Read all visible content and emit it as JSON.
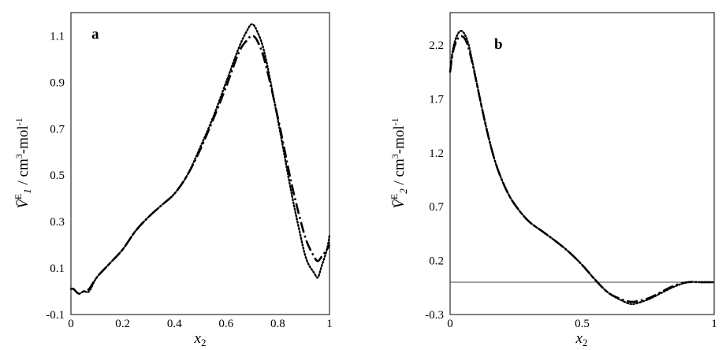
{
  "chart_data": [
    {
      "type": "line",
      "panel_label": "a",
      "xlabel": "x2",
      "ylabel": "V̄E1 / cm3-mol-1",
      "xlim": [
        0,
        1
      ],
      "ylim": [
        -0.1,
        1.2
      ],
      "xticks": [
        "0",
        "0.2",
        "0.4",
        "0.6",
        "0.8",
        "1"
      ],
      "xtick_values": [
        0,
        0.2,
        0.4,
        0.6,
        0.8,
        1
      ],
      "yticks": [
        "-0.1",
        "0.1",
        "0.3",
        "0.5",
        "0.7",
        "0.9",
        "1.1"
      ],
      "ytick_values": [
        -0.1,
        0.1,
        0.3,
        0.5,
        0.7,
        0.9,
        1.1
      ],
      "grid": false,
      "series": [
        {
          "style": "dotted",
          "x": [
            0,
            0.01,
            0.03,
            0.05,
            0.07,
            0.1,
            0.15,
            0.2,
            0.25,
            0.3,
            0.35,
            0.4,
            0.45,
            0.5,
            0.55,
            0.6,
            0.65,
            0.68,
            0.7,
            0.72,
            0.75,
            0.8,
            0.85,
            0.88,
            0.91,
            0.94,
            0.955,
            0.97,
            0.99,
            1.0
          ],
          "y": [
            0.01,
            0.01,
            -0.01,
            0.0,
            0.0,
            0.06,
            0.12,
            0.18,
            0.26,
            0.32,
            0.37,
            0.42,
            0.5,
            0.62,
            0.75,
            0.9,
            1.05,
            1.12,
            1.15,
            1.12,
            1.02,
            0.74,
            0.44,
            0.28,
            0.14,
            0.08,
            0.06,
            0.11,
            0.18,
            0.24
          ]
        },
        {
          "style": "long-dash-dot",
          "x": [
            0,
            0.01,
            0.03,
            0.05,
            0.07,
            0.1,
            0.15,
            0.2,
            0.25,
            0.3,
            0.35,
            0.4,
            0.45,
            0.5,
            0.55,
            0.6,
            0.65,
            0.68,
            0.7,
            0.72,
            0.75,
            0.8,
            0.85,
            0.88,
            0.91,
            0.94,
            0.955,
            0.97,
            0.99,
            1.0
          ],
          "y": [
            0.01,
            0.01,
            -0.01,
            0.0,
            0.01,
            0.06,
            0.12,
            0.18,
            0.26,
            0.32,
            0.37,
            0.42,
            0.5,
            0.61,
            0.74,
            0.88,
            1.03,
            1.08,
            1.1,
            1.08,
            0.99,
            0.75,
            0.48,
            0.34,
            0.22,
            0.15,
            0.13,
            0.15,
            0.18,
            0.2
          ]
        }
      ]
    },
    {
      "type": "line",
      "panel_label": "b",
      "xlabel": "x2",
      "ylabel": "V̄E2 / cm3-mol-1",
      "xlim": [
        0,
        1
      ],
      "ylim": [
        -0.3,
        2.5
      ],
      "xticks": [
        "0",
        "0.5",
        "1"
      ],
      "xtick_values": [
        0,
        0.5,
        1
      ],
      "yticks": [
        "-0.3",
        "0.2",
        "0.7",
        "1.2",
        "1.7",
        "2.2"
      ],
      "ytick_values": [
        -0.3,
        0.2,
        0.7,
        1.2,
        1.7,
        2.2
      ],
      "zero_line": true,
      "grid": false,
      "series": [
        {
          "style": "dotted",
          "x": [
            0,
            0.01,
            0.025,
            0.04,
            0.055,
            0.07,
            0.09,
            0.12,
            0.15,
            0.18,
            0.22,
            0.26,
            0.3,
            0.35,
            0.4,
            0.45,
            0.5,
            0.55,
            0.6,
            0.65,
            0.68,
            0.7,
            0.75,
            0.8,
            0.85,
            0.9,
            0.95,
            1.0
          ],
          "y": [
            1.95,
            2.15,
            2.28,
            2.33,
            2.3,
            2.2,
            1.98,
            1.62,
            1.3,
            1.05,
            0.82,
            0.67,
            0.56,
            0.47,
            0.38,
            0.28,
            0.16,
            0.02,
            -0.1,
            -0.17,
            -0.2,
            -0.2,
            -0.16,
            -0.1,
            -0.04,
            0.0,
            0.0,
            0.0
          ]
        },
        {
          "style": "long-dash-dot",
          "x": [
            0,
            0.01,
            0.025,
            0.04,
            0.055,
            0.07,
            0.09,
            0.12,
            0.15,
            0.18,
            0.22,
            0.26,
            0.3,
            0.35,
            0.4,
            0.45,
            0.5,
            0.55,
            0.6,
            0.65,
            0.68,
            0.7,
            0.75,
            0.8,
            0.85,
            0.9,
            0.95,
            1.0
          ],
          "y": [
            1.95,
            2.13,
            2.24,
            2.28,
            2.26,
            2.17,
            1.97,
            1.62,
            1.3,
            1.05,
            0.82,
            0.67,
            0.56,
            0.47,
            0.38,
            0.28,
            0.16,
            0.02,
            -0.1,
            -0.16,
            -0.18,
            -0.18,
            -0.15,
            -0.09,
            -0.03,
            0.0,
            0.0,
            0.0
          ]
        }
      ]
    }
  ]
}
